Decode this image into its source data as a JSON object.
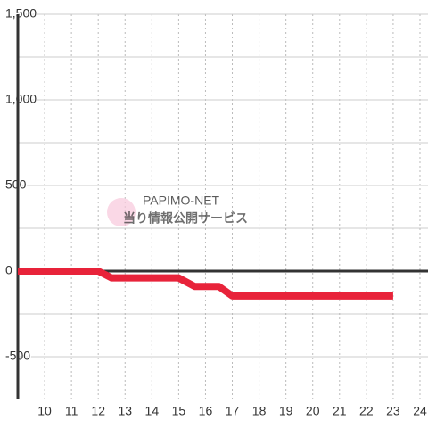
{
  "chart_data": {
    "type": "line",
    "watermark": "当り情報公開サービス",
    "watermark_small": "PAPIMO-NET",
    "x": [
      9,
      12,
      12.5,
      15,
      15.6,
      16.5,
      17,
      23
    ],
    "series": [
      {
        "color": "#e8233a",
        "values": [
          0,
          0,
          -40,
          -40,
          -90,
          -90,
          -145,
          -145
        ]
      }
    ],
    "xlim": [
      9,
      24.3
    ],
    "xticks": [
      10,
      11,
      12,
      13,
      14,
      15,
      16,
      17,
      18,
      19,
      20,
      21,
      22,
      23,
      24
    ],
    "ylim": [
      -750,
      1500
    ],
    "yticks": [
      -500,
      0,
      500,
      {
        "value": 1000,
        "label": "1,000"
      },
      {
        "value": 1500,
        "label": "1,500"
      }
    ],
    "y_minor_gridlines": [
      -250,
      250,
      750,
      1250
    ],
    "grid": true
  }
}
